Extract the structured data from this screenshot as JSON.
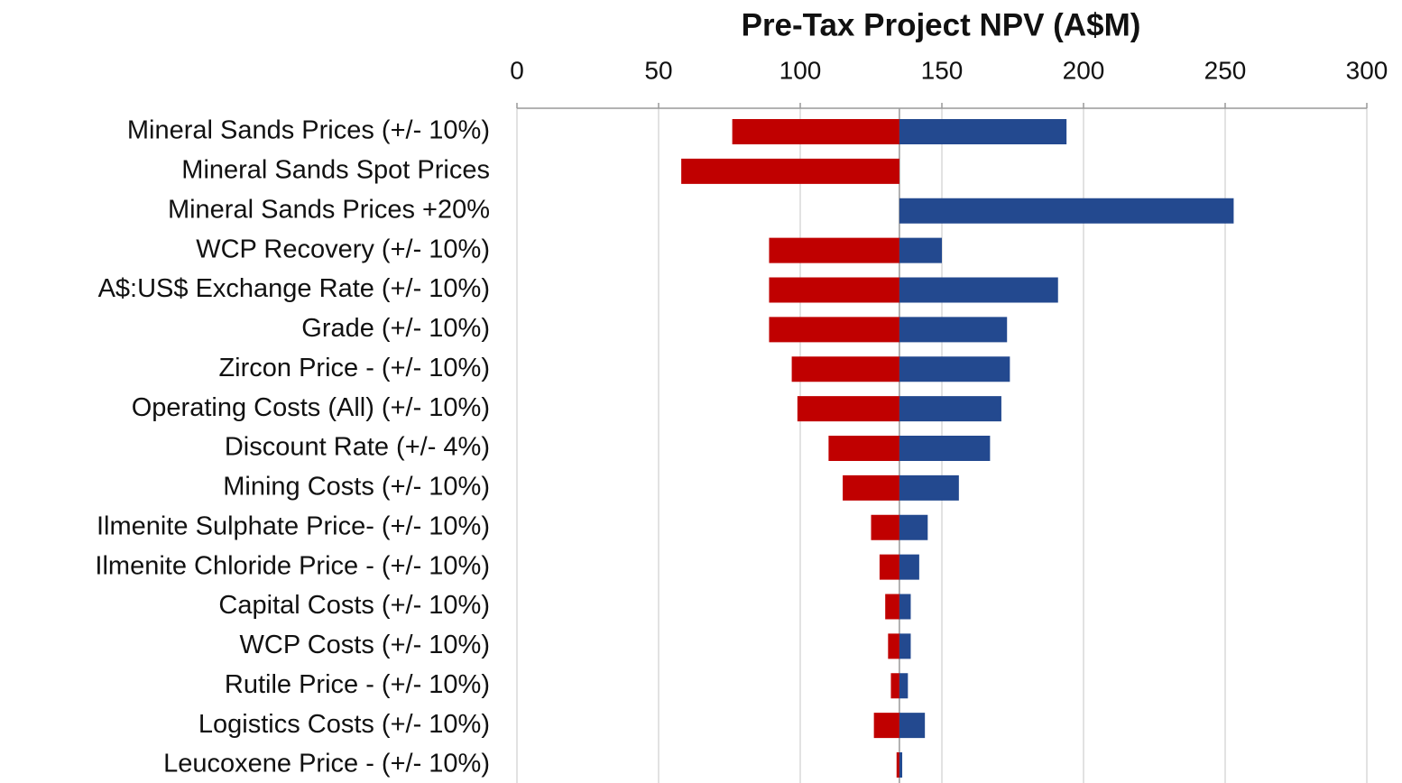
{
  "chart_data": {
    "type": "tornado",
    "title": "Pre-Tax Project NPV (A$M)",
    "categories": [
      "Mineral Sands Prices (+/- 10%)",
      "Mineral Sands Spot Prices",
      "Mineral Sands Prices +20%",
      "WCP Recovery (+/- 10%)",
      "A$:US$ Exchange Rate (+/- 10%)",
      "Grade (+/- 10%)",
      "Zircon Price - (+/- 10%)",
      "Operating Costs (All) (+/- 10%)",
      "Discount Rate (+/- 4%)",
      "Mining Costs (+/- 10%)",
      "Ilmenite Sulphate Price- (+/- 10%)",
      "Ilmenite Chloride Price - (+/- 10%)",
      "Capital Costs (+/- 10%)",
      "WCP Costs (+/- 10%)",
      "Rutile Price - (+/- 10%)",
      "Logistics Costs (+/- 10%)",
      "Leucoxene Price - (+/- 10%)"
    ],
    "base": 135,
    "series": [
      {
        "color": "#c00000",
        "values": [
          76,
          58,
          null,
          89,
          89,
          89,
          97,
          99,
          110,
          115,
          125,
          128,
          130,
          131,
          132,
          126,
          134
        ]
      },
      {
        "color": "#23498f",
        "values": [
          194,
          null,
          253,
          150,
          191,
          173,
          174,
          171,
          167,
          156,
          145,
          142,
          139,
          139,
          138,
          144,
          136
        ]
      }
    ],
    "xlim": [
      0,
      300
    ],
    "xticks": [
      0,
      50,
      100,
      150,
      200,
      250,
      300
    ],
    "grid": true
  }
}
